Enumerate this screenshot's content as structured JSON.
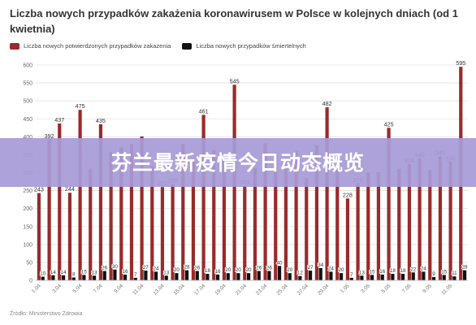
{
  "title": "Liczba nowych przypadków zakażenia koronawirusem w Polsce w kolejnych dniach (od 1 kwietnia)",
  "source": "Źródło: Ministerstwo Zdrowia",
  "banner": "芬兰最新疫情今日动态概览",
  "colors": {
    "confirmed": "#9b2a2a",
    "deaths": "#111111",
    "banner": "#a79bd6"
  },
  "chart_data": {
    "type": "bar",
    "title": "Liczba nowych przypadków zakażenia koronawirusem w Polsce w kolejnych dniach (od 1 kwietnia)",
    "ylim": [
      0,
      600
    ],
    "yticks": [
      0,
      50,
      100,
      150,
      200,
      250,
      300,
      350,
      400,
      450,
      500,
      550,
      600
    ],
    "grid": true,
    "legend_position": "top-left",
    "categories": [
      "1.04",
      "2.04",
      "3.04",
      "4.04",
      "5.04",
      "6.04",
      "7.04",
      "8.04",
      "9.04",
      "10.04",
      "11.04",
      "12.04",
      "13.04",
      "14.04",
      "15.04",
      "16.04",
      "17.04",
      "18.04",
      "19.04",
      "20.04",
      "21.04",
      "22.04",
      "23.04",
      "24.04",
      "25.04",
      "26.04",
      "27.04",
      "28.04",
      "29.04",
      "30.04",
      "1.05",
      "2.05",
      "3.05",
      "4.05",
      "5.05",
      "6.05",
      "7.05",
      "8.05",
      "9.05",
      "10.05",
      "11.05",
      "12.05"
    ],
    "xtick_labels": [
      "1.04",
      "",
      "3.04",
      "",
      "5.04",
      "",
      "7.04",
      "",
      "9.04",
      "",
      "11.04",
      "",
      "13.04",
      "",
      "15.04",
      "",
      "17.04",
      "",
      "19.04",
      "",
      "21.04",
      "",
      "23.04",
      "",
      "25.04",
      "",
      "27.04",
      "",
      "29.04",
      "",
      "1.05",
      "",
      "3.05",
      "",
      "5.05",
      "",
      "7.05",
      "",
      "9.05",
      "",
      "11.05",
      ""
    ],
    "series": [
      {
        "name": "Liczba nowych potwierdzonych przypadków zakażenia",
        "values": [
          243,
          392,
          437,
          244,
          475,
          311,
          435,
          357,
          370,
          380,
          401,
          318,
          260,
          268,
          380,
          336,
          461,
          363,
          336,
          545,
          263,
          313,
          381,
          355,
          337,
          359,
          285,
          376,
          482,
          308,
          228,
          270,
          300,
          301,
          425,
          311,
          324,
          340,
          307,
          345,
          330,
          595
        ],
        "labels": [
          243,
          392,
          437,
          244,
          475,
          null,
          435,
          null,
          null,
          null,
          null,
          null,
          260,
          268,
          null,
          null,
          461,
          null,
          null,
          545,
          263,
          null,
          null,
          null,
          null,
          null,
          null,
          null,
          482,
          null,
          228,
          270,
          null,
          null,
          425,
          null,
          324,
          340,
          null,
          345,
          330,
          595
        ]
      },
      {
        "name": "Liczba nowych przypadków śmiertelnych",
        "values": [
          10,
          14,
          14,
          8,
          15,
          13,
          26,
          30,
          16,
          7,
          27,
          24,
          13,
          20,
          28,
          26,
          18,
          16,
          20,
          20,
          20,
          26,
          26,
          40,
          20,
          12,
          27,
          34,
          24,
          20,
          7,
          13,
          15,
          16,
          18,
          18,
          22,
          24,
          9,
          15,
          11,
          28
        ],
        "labels": [
          10,
          14,
          14,
          8,
          15,
          13,
          26,
          30,
          16,
          7,
          27,
          24,
          13,
          20,
          28,
          26,
          18,
          16,
          20,
          20,
          20,
          26,
          26,
          40,
          20,
          12,
          27,
          34,
          24,
          20,
          7,
          13,
          15,
          16,
          18,
          18,
          22,
          24,
          9,
          15,
          11,
          28
        ]
      }
    ]
  }
}
